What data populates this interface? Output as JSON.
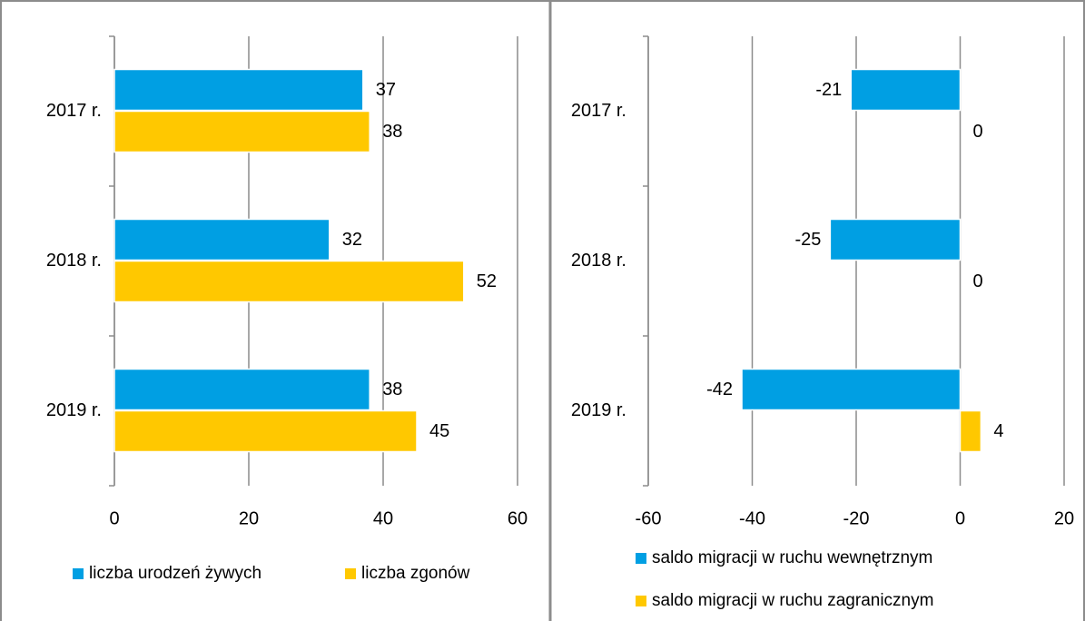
{
  "chart_data": [
    {
      "type": "bar",
      "orientation": "horizontal",
      "categories": [
        "2017 r.",
        "2018 r.",
        "2019 r."
      ],
      "series": [
        {
          "name": "liczba urodzeń żywych",
          "color": "#009fe3",
          "values": [
            37,
            32,
            38
          ]
        },
        {
          "name": "liczba zgonów",
          "color": "#ffc800",
          "values": [
            38,
            52,
            45
          ]
        }
      ],
      "xlim": [
        0,
        60
      ],
      "xticks": [
        0,
        20,
        40,
        60
      ],
      "grid": true,
      "legend": "bottom"
    },
    {
      "type": "bar",
      "orientation": "horizontal",
      "categories": [
        "2017 r.",
        "2018 r.",
        "2019 r."
      ],
      "series": [
        {
          "name": "saldo migracji w ruchu wewnętrznym",
          "color": "#009fe3",
          "values": [
            -21,
            -25,
            -42
          ]
        },
        {
          "name": "saldo migracji w ruchu zagranicznym",
          "color": "#ffc800",
          "values": [
            0,
            0,
            4
          ]
        }
      ],
      "xlim": [
        -60,
        20
      ],
      "xticks": [
        -60,
        -40,
        -20,
        0,
        20
      ],
      "grid": true,
      "legend": "bottom"
    }
  ]
}
